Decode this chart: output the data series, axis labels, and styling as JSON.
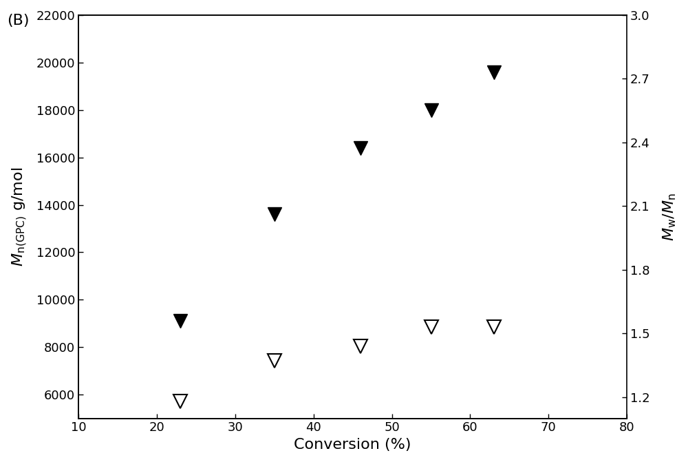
{
  "title_label": "(B)",
  "x_label": "Conversion (%)",
  "y_left_label": "$M_{\\mathrm{n(GPC)}}$ g/mol",
  "y_right_label": "$M_{\\mathrm{w}}/M_{\\mathrm{n}}$",
  "xlim": [
    10,
    80
  ],
  "ylim_left": [
    5000,
    22000
  ],
  "ylim_right": [
    1.1,
    3.0
  ],
  "xticks": [
    10,
    20,
    30,
    40,
    50,
    60,
    70,
    80
  ],
  "yticks_left": [
    6000,
    8000,
    10000,
    12000,
    14000,
    16000,
    18000,
    20000,
    22000
  ],
  "yticks_right": [
    1.2,
    1.5,
    1.8,
    2.1,
    2.4,
    2.7,
    3.0
  ],
  "filled_x": [
    23,
    35,
    46,
    55,
    63
  ],
  "filled_y": [
    9100,
    13600,
    16400,
    18000,
    19600
  ],
  "open_x": [
    23,
    35,
    46,
    55,
    63
  ],
  "open_mw_mn": [
    1.18,
    1.37,
    1.44,
    1.53,
    1.53
  ],
  "marker_size": 14,
  "background_color": "#ffffff",
  "axis_color": "#000000",
  "text_color": "#000000"
}
